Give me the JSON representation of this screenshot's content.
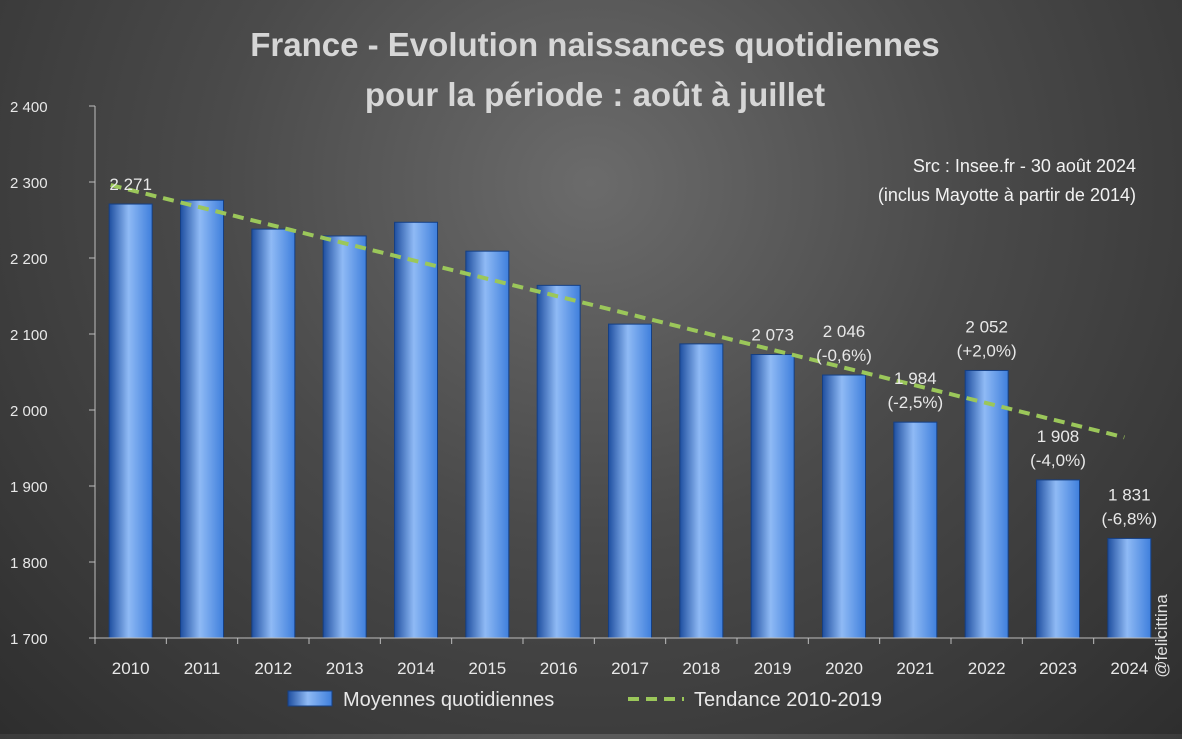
{
  "chart_data": {
    "type": "bar",
    "title_lines": [
      "France - Evolution naissances quotidiennes",
      "pour la période : août à juillet"
    ],
    "source_lines": [
      "Src : Insee.fr - 30 août 2024",
      "(inclus Mayotte à partir de 2014)"
    ],
    "watermark": "@felicittina",
    "categories": [
      "2010",
      "2011",
      "2012",
      "2013",
      "2014",
      "2015",
      "2016",
      "2017",
      "2018",
      "2019",
      "2020",
      "2021",
      "2022",
      "2023",
      "2024"
    ],
    "series": [
      {
        "name": "Moyennes quotidiennes",
        "values": [
          2271,
          2276,
          2238,
          2229,
          2247,
          2209,
          2164,
          2113,
          2087,
          2073,
          2046,
          1984,
          2052,
          1908,
          1831
        ]
      }
    ],
    "trend": {
      "name": "Tendance 2010-2019",
      "x": [
        "2010",
        "2024"
      ],
      "values": [
        2296,
        1964
      ]
    },
    "data_labels": [
      {
        "category": "2010",
        "lines": [
          "2 271"
        ]
      },
      {
        "category": "2019",
        "lines": [
          "2 073"
        ]
      },
      {
        "category": "2020",
        "lines": [
          "2 046",
          "(-0,6%)"
        ]
      },
      {
        "category": "2021",
        "lines": [
          "1 984",
          "(-2,5%)"
        ]
      },
      {
        "category": "2022",
        "lines": [
          "2 052",
          "(+2,0%)"
        ]
      },
      {
        "category": "2023",
        "lines": [
          "1 908",
          "(-4,0%)"
        ]
      },
      {
        "category": "2024",
        "lines": [
          "1 831",
          "(-6,8%)"
        ]
      }
    ],
    "y_ticks": [
      1700,
      1800,
      1900,
      2000,
      2100,
      2200,
      2300,
      2400
    ],
    "y_tick_labels": [
      "1 700",
      "1 800",
      "1 900",
      "2 000",
      "2 100",
      "2 200",
      "2 300",
      "2 400"
    ],
    "ylim": [
      1700,
      2400
    ],
    "xlabel": "",
    "ylabel": "",
    "colors": {
      "bar": "#3f7fdc",
      "bar_dark": "#1f4fa0",
      "bar_light": "#8fbaf5",
      "trend": "#9bc75a",
      "text": "#e8e8e8",
      "axis": "#bdbdbd"
    }
  }
}
